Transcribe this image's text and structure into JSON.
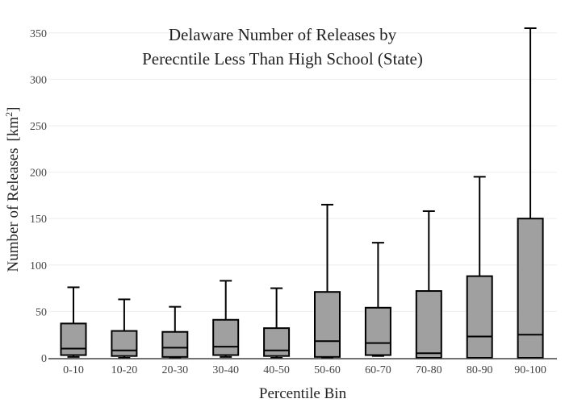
{
  "chart_data": {
    "type": "box",
    "title_lines": [
      "Delaware Number of Releases by",
      "Perecntile Less Than High School (State)"
    ],
    "xlabel": "Percentile Bin",
    "ylabel": "Number of Releases",
    "ylabel_unit_base": "[km",
    "ylabel_unit_sup": "2",
    "ylabel_unit_close": "]",
    "ylim": [
      0,
      355
    ],
    "yticks": [
      0,
      50,
      100,
      150,
      200,
      250,
      300,
      350
    ],
    "grid": true,
    "categories": [
      "0-10",
      "10-20",
      "20-30",
      "30-40",
      "40-50",
      "50-60",
      "60-70",
      "70-80",
      "80-90",
      "90-100"
    ],
    "boxes": [
      {
        "min": 1,
        "q1": 3,
        "median": 10,
        "q3": 37,
        "max": 76
      },
      {
        "min": 0,
        "q1": 2,
        "median": 8,
        "q3": 29,
        "max": 63
      },
      {
        "min": 0,
        "q1": 1,
        "median": 11,
        "q3": 28,
        "max": 55
      },
      {
        "min": 1,
        "q1": 3,
        "median": 12,
        "q3": 41,
        "max": 83
      },
      {
        "min": 0,
        "q1": 2,
        "median": 8,
        "q3": 32,
        "max": 75
      },
      {
        "min": 0,
        "q1": 1,
        "median": 18,
        "q3": 71,
        "max": 165
      },
      {
        "min": 2,
        "q1": 3,
        "median": 16,
        "q3": 54,
        "max": 124
      },
      {
        "min": 0,
        "q1": 0,
        "median": 5,
        "q3": 72,
        "max": 158
      },
      {
        "min": 0,
        "q1": 0,
        "median": 23,
        "q3": 88,
        "max": 195
      },
      {
        "min": 0,
        "q1": 0,
        "median": 25,
        "q3": 150,
        "max": 355
      }
    ],
    "colors": {
      "box_fill": "#a0a0a0",
      "box_stroke": "#000000",
      "grid": "#eeeeee",
      "axis": "#444444",
      "text": "#222222"
    }
  }
}
